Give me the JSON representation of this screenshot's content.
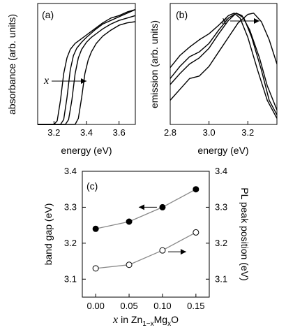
{
  "chart_data": [
    {
      "type": "line",
      "panel_label": "(a)",
      "xlabel": "energy (eV)",
      "ylabel": "absorbance (arb. units)",
      "xlim": [
        3.1,
        3.7
      ],
      "xticks": [
        "3.2",
        "3.4",
        "3.6"
      ],
      "xtick_values": [
        3.2,
        3.4,
        3.6
      ],
      "ylim": [
        0,
        1
      ],
      "annotation": {
        "text": "x",
        "arrow": "right"
      },
      "series": [
        {
          "x": [
            3.1,
            3.2,
            3.22,
            3.24,
            3.26,
            3.28,
            3.3,
            3.33,
            3.36,
            3.4,
            3.45,
            3.5,
            3.55,
            3.6,
            3.65,
            3.7
          ],
          "values": [
            0.0,
            0.0,
            0.03,
            0.2,
            0.42,
            0.55,
            0.62,
            0.67,
            0.7,
            0.74,
            0.79,
            0.84,
            0.88,
            0.9,
            0.93,
            0.95
          ]
        },
        {
          "x": [
            3.1,
            3.24,
            3.26,
            3.28,
            3.3,
            3.32,
            3.34,
            3.37,
            3.4,
            3.45,
            3.5,
            3.55,
            3.6,
            3.65,
            3.7
          ],
          "values": [
            0.0,
            0.0,
            0.04,
            0.22,
            0.45,
            0.57,
            0.63,
            0.68,
            0.72,
            0.78,
            0.83,
            0.86,
            0.89,
            0.92,
            0.95
          ]
        },
        {
          "x": [
            3.1,
            3.27,
            3.29,
            3.31,
            3.33,
            3.35,
            3.37,
            3.4,
            3.43,
            3.47,
            3.5,
            3.55,
            3.6,
            3.65,
            3.7
          ],
          "values": [
            0.0,
            0.0,
            0.04,
            0.2,
            0.42,
            0.55,
            0.62,
            0.68,
            0.72,
            0.76,
            0.79,
            0.83,
            0.86,
            0.88,
            0.9
          ]
        },
        {
          "x": [
            3.1,
            3.33,
            3.35,
            3.37,
            3.39,
            3.41,
            3.43,
            3.46,
            3.5,
            3.55,
            3.6,
            3.65,
            3.7
          ],
          "values": [
            0.0,
            0.0,
            0.05,
            0.22,
            0.42,
            0.53,
            0.6,
            0.67,
            0.73,
            0.78,
            0.82,
            0.84,
            0.85
          ]
        }
      ]
    },
    {
      "type": "line",
      "panel_label": "(b)",
      "xlabel": "energy (eV)",
      "ylabel": "emission (arb. units)",
      "xlim": [
        2.8,
        3.35
      ],
      "xticks": [
        "2.8",
        "3.0",
        "3.2"
      ],
      "xtick_values": [
        2.8,
        3.0,
        3.2
      ],
      "ylim": [
        0,
        1
      ],
      "annotation": {
        "text": "x",
        "arrow": "right"
      },
      "series": [
        {
          "x": [
            2.8,
            2.85,
            2.9,
            2.95,
            3.0,
            3.05,
            3.1,
            3.13,
            3.16,
            3.2,
            3.25,
            3.3,
            3.35
          ],
          "values": [
            0.47,
            0.57,
            0.64,
            0.7,
            0.75,
            0.82,
            0.9,
            0.92,
            0.88,
            0.72,
            0.45,
            0.2,
            0.05
          ]
        },
        {
          "x": [
            2.8,
            2.85,
            2.9,
            2.95,
            3.0,
            3.05,
            3.1,
            3.14,
            3.18,
            3.22,
            3.27,
            3.31,
            3.35
          ],
          "values": [
            0.38,
            0.48,
            0.56,
            0.6,
            0.67,
            0.78,
            0.88,
            0.92,
            0.88,
            0.72,
            0.45,
            0.2,
            0.08
          ]
        },
        {
          "x": [
            2.8,
            2.85,
            2.9,
            2.95,
            3.0,
            3.05,
            3.1,
            3.14,
            3.17,
            3.21,
            3.26,
            3.3,
            3.35
          ],
          "values": [
            0.33,
            0.42,
            0.5,
            0.55,
            0.63,
            0.75,
            0.86,
            0.92,
            0.9,
            0.78,
            0.55,
            0.32,
            0.12
          ]
        },
        {
          "x": [
            2.8,
            2.85,
            2.9,
            2.95,
            3.0,
            3.05,
            3.1,
            3.15,
            3.2,
            3.23,
            3.27,
            3.31,
            3.35
          ],
          "values": [
            0.2,
            0.29,
            0.38,
            0.4,
            0.48,
            0.6,
            0.72,
            0.84,
            0.91,
            0.92,
            0.85,
            0.7,
            0.5
          ]
        }
      ]
    },
    {
      "type": "scatter",
      "panel_label": "(c)",
      "xlabel_parts": {
        "var": "x",
        "pre": "in Zn",
        "sub1": "1−x",
        "mid": "Mg",
        "sub2": "x",
        "post": "O"
      },
      "ylabel": "band gap (eV)",
      "y2label": "PL peak position (eV)",
      "xlim": [
        -0.02,
        0.17
      ],
      "ylim": [
        3.05,
        3.4
      ],
      "xticks": [
        "0.00",
        "0.05",
        "0.10",
        "0.15"
      ],
      "xtick_values": [
        0.0,
        0.05,
        0.1,
        0.15
      ],
      "yticks": [
        "3.1",
        "3.2",
        "3.3",
        "3.4"
      ],
      "ytick_values": [
        3.1,
        3.2,
        3.3,
        3.4
      ],
      "series": [
        {
          "marker": "filled",
          "axis": "left",
          "arrow": "left",
          "x": [
            0.0,
            0.05,
            0.1,
            0.15
          ],
          "values": [
            3.24,
            3.26,
            3.3,
            3.35
          ]
        },
        {
          "marker": "open",
          "axis": "right",
          "arrow": "right",
          "x": [
            0.0,
            0.05,
            0.1,
            0.15
          ],
          "values": [
            3.13,
            3.14,
            3.18,
            3.23
          ]
        }
      ]
    }
  ],
  "colors": {
    "curve": "#000000",
    "fit_line": "#888888",
    "axis": "#000000"
  }
}
